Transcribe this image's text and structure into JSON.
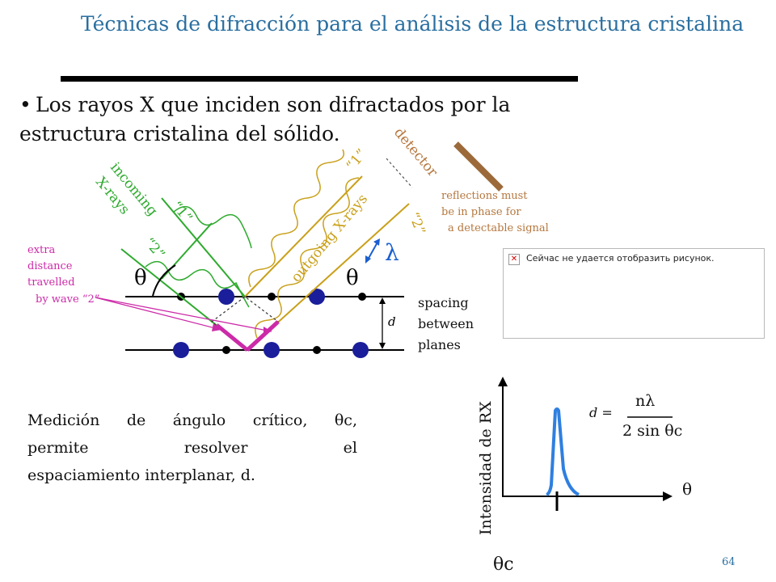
{
  "slide": {
    "title": "Técnicas de difracción para el análisis de la estructura cristalina",
    "bullet": "Los rayos X que inciden son difractados por la estructura cristalina del sólido.",
    "body_line1": "Medición de ángulo crítico, θc,",
    "body_line2": "permite resolver el",
    "body_line3": "espaciamiento interplanar, d.",
    "page_number": "64"
  },
  "broken_image": {
    "message": "Сейчас не удается отобразить рисунок.",
    "icon": "broken-image-icon"
  },
  "diagram": {
    "incoming_label_1": "incoming",
    "incoming_label_2": "X-rays",
    "outgoing_label": "outgoing X-rays",
    "detector_label": "detector",
    "ray1_in": "“1”",
    "ray2_in": "“2”",
    "ray1_out": "“1”",
    "ray2_out": "“2”",
    "lambda": "λ",
    "theta_left": "θ",
    "theta_right": "θ",
    "d_label": "d",
    "extra_distance_1": "extra",
    "extra_distance_2": "distance",
    "extra_distance_3": "travelled",
    "extra_distance_4": "by wave “2”",
    "phase_1": "reflections must",
    "phase_2": "be in phase for",
    "phase_3": "a detectable signal",
    "spacing_1": "spacing",
    "spacing_2": "between",
    "spacing_3": "planes",
    "colors": {
      "incoming": "#2eaa2e",
      "outgoing": "#c9a01a",
      "detector": "#b5773e",
      "extra": "#cc2aa8",
      "lambda": "#1a5fd0",
      "atom": "#1a1e9a"
    }
  },
  "graph": {
    "ylabel": "Intensidad de RX",
    "xlabel": "θ",
    "theta_c": "θc",
    "formula_lhs": "d =",
    "formula_num": "nλ",
    "formula_den": "2 sin θc",
    "curve_color": "#2f7fe0"
  }
}
